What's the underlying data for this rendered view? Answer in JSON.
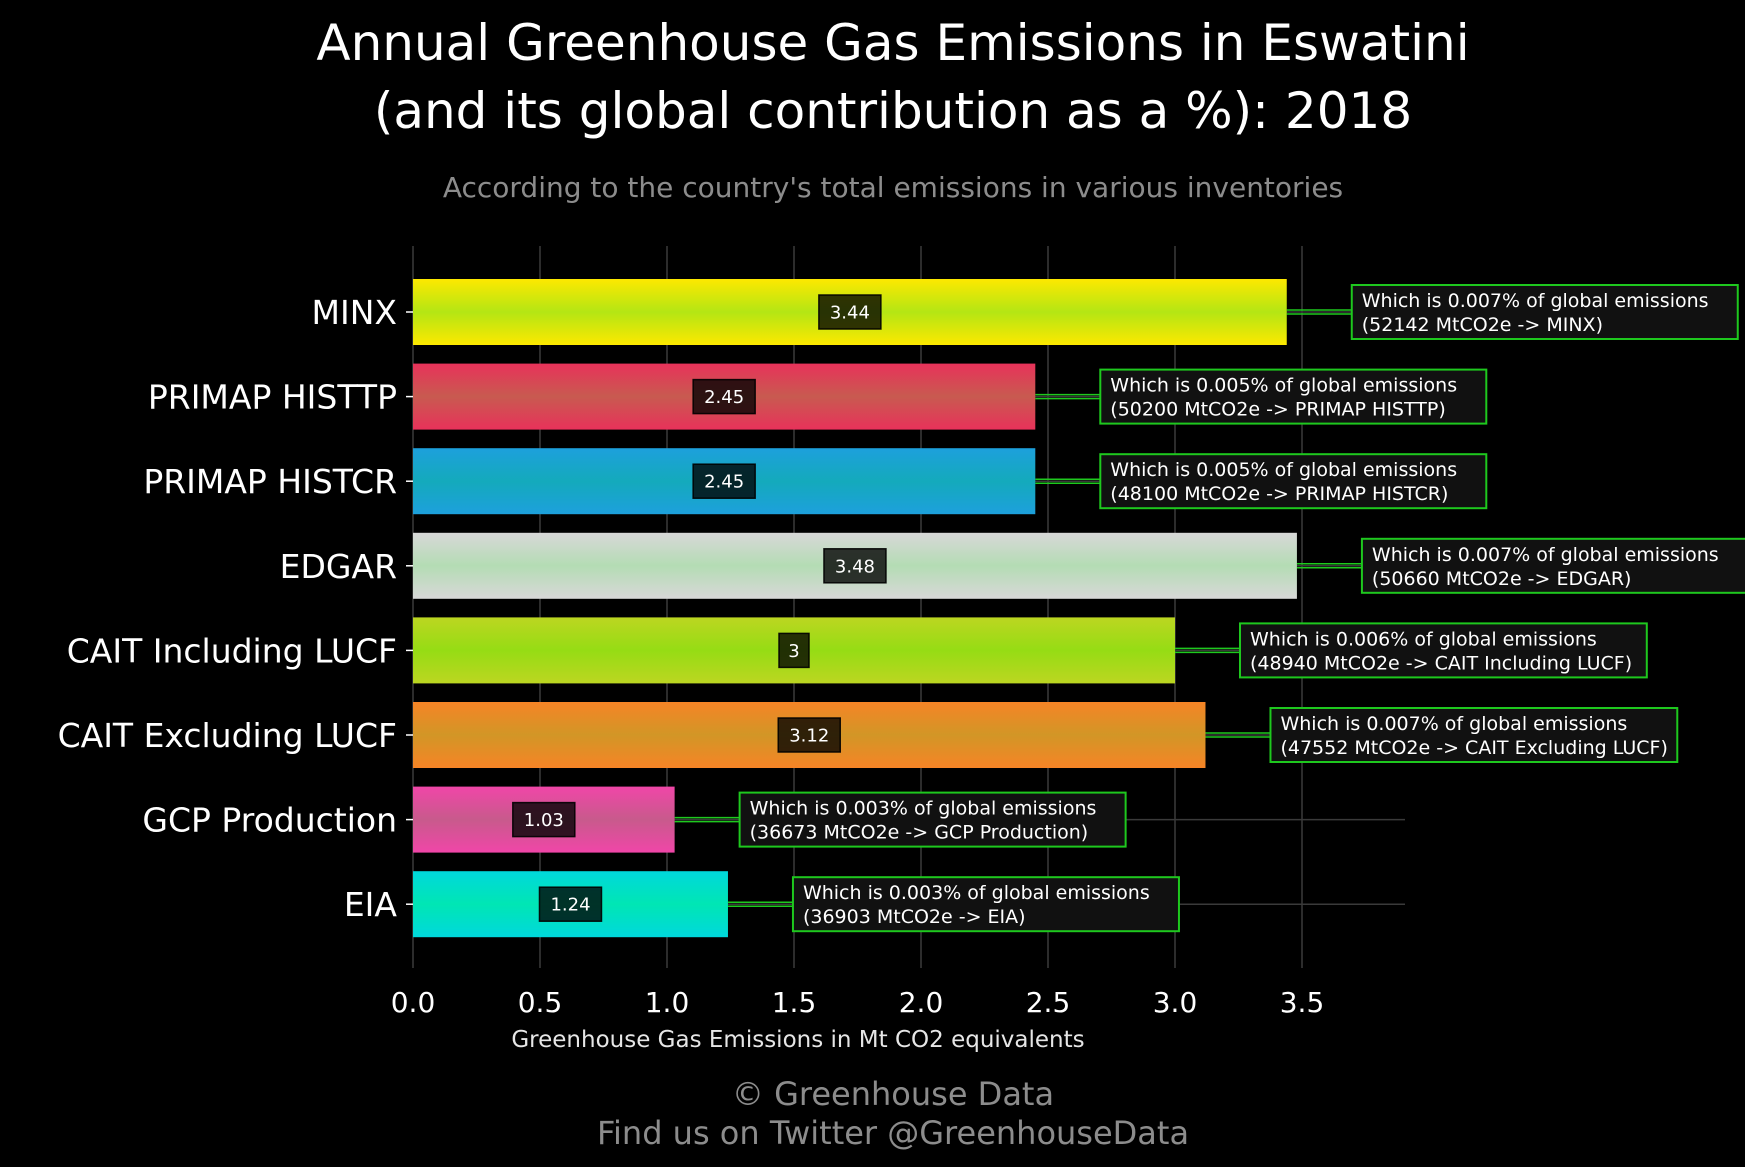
{
  "chart_data": {
    "type": "bar",
    "orientation": "horizontal",
    "title_line1": "Annual Greenhouse Gas Emissions in Eswatini",
    "title_line2": "(and its global contribution as a %): 2018",
    "subtitle": "According to the country's total emissions in various inventories",
    "xlabel": "Greenhouse Gas Emissions in Mt CO2 equivalents",
    "xlim": [
      0,
      3.9
    ],
    "xticks": [
      "0.0",
      "0.5",
      "1.0",
      "1.5",
      "2.0",
      "2.5",
      "3.0",
      "3.5"
    ],
    "grid": true,
    "categories": [
      "MINX",
      "PRIMAP HISTTP",
      "PRIMAP HISTCR",
      "EDGAR",
      "CAIT Including LUCF",
      "CAIT Excluding LUCF",
      "GCP Production",
      "EIA"
    ],
    "values": [
      3.44,
      2.45,
      2.45,
      3.48,
      3,
      3.12,
      1.03,
      1.24
    ],
    "value_labels": [
      "3.44",
      "2.45",
      "2.45",
      "3.48",
      "3",
      "3.12",
      "1.03",
      "1.24"
    ],
    "bar_colors": [
      "#fde800",
      "#e8325a",
      "#1da0dc",
      "#d8d8d8",
      "#bcd621",
      "#f68426",
      "#f046a8",
      "#00d8dc"
    ],
    "bar_glow": [
      "#b4e614",
      "#c85a50",
      "#14aabc",
      "#b4dcb4",
      "#96dc14",
      "#d29626",
      "#c85a8c",
      "#00e6b4"
    ],
    "annotations": [
      {
        "line1": "Which is 0.007% of global emissions",
        "line2": "(52142 MtCO2e -> MINX)"
      },
      {
        "line1": "Which is 0.005% of global emissions",
        "line2": "(50200 MtCO2e -> PRIMAP HISTTP)"
      },
      {
        "line1": "Which is 0.005% of global emissions",
        "line2": "(48100 MtCO2e -> PRIMAP HISTCR)"
      },
      {
        "line1": "Which is 0.007% of global emissions",
        "line2": "(50660 MtCO2e -> EDGAR)"
      },
      {
        "line1": "Which is 0.006% of global emissions",
        "line2": "(48940 MtCO2e -> CAIT Including LUCF)"
      },
      {
        "line1": "Which is 0.007% of global emissions",
        "line2": "(47552 MtCO2e -> CAIT Excluding LUCF)"
      },
      {
        "line1": "Which is 0.003% of global emissions",
        "line2": "(36673 MtCO2e -> GCP Production)"
      },
      {
        "line1": "Which is 0.003% of global emissions",
        "line2": "(36903 MtCO2e -> EIA)"
      }
    ],
    "annotation_border_color": "#1ec81e",
    "connector_color": "#1ec81e"
  },
  "credits": {
    "line1": "© Greenhouse Data",
    "line2": "Find us on Twitter @GreenhouseData"
  },
  "colors": {
    "background": "#000000",
    "grid": "#3a3a3a",
    "title": "#ffffff",
    "subtitle": "#8c8c8c"
  }
}
